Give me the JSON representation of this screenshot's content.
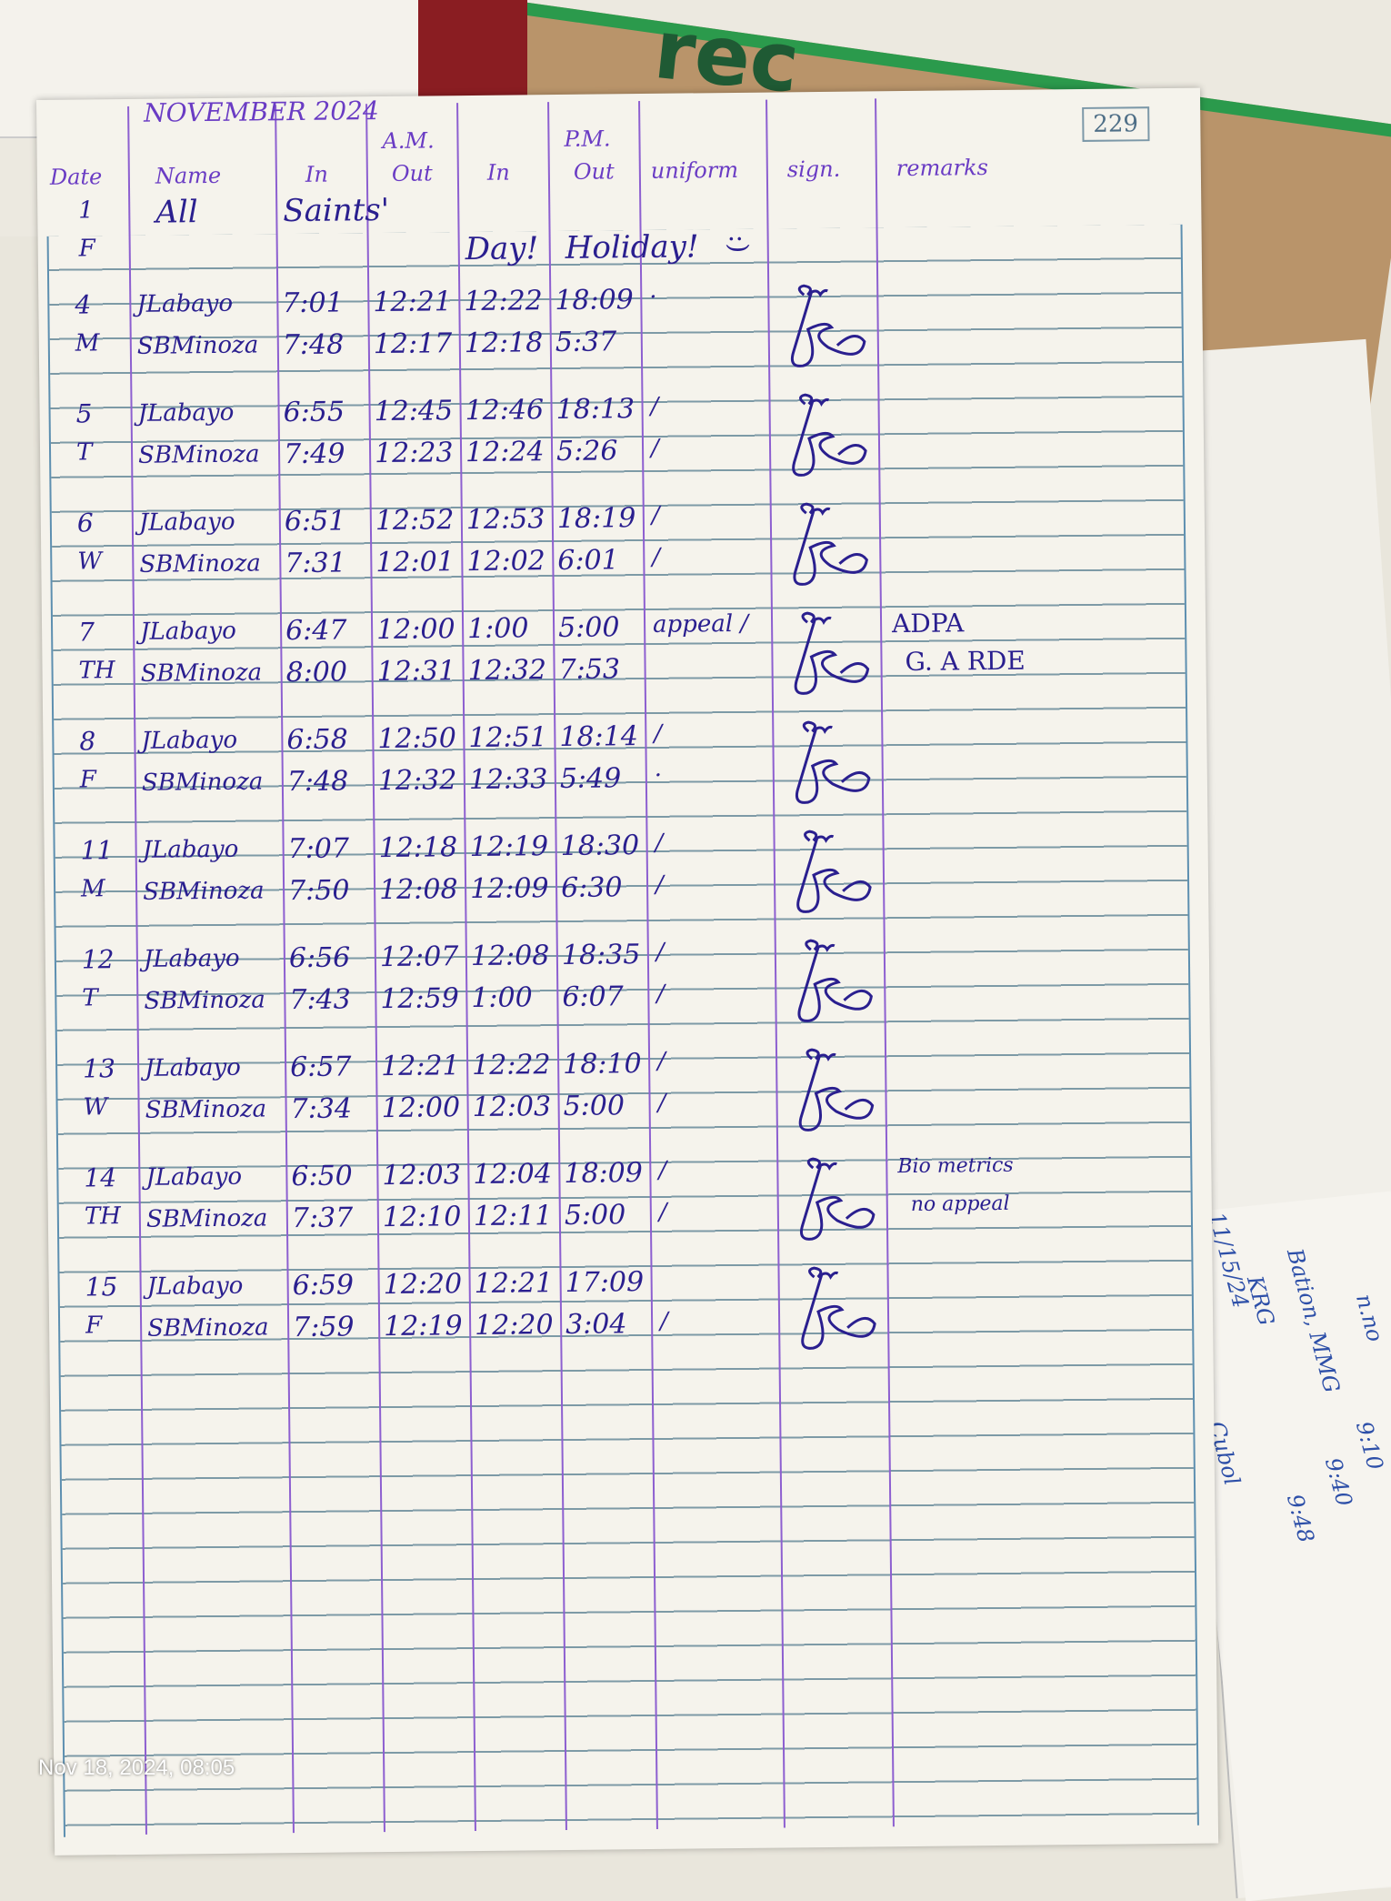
{
  "page_number": "229",
  "header": {
    "month": "NOVEMBER 2024",
    "am": "A.M.",
    "pm": "P.M.",
    "columns": {
      "date": "Date",
      "name": "Name",
      "am_in": "In",
      "am_out": "Out",
      "pm_in": "In",
      "pm_out": "Out",
      "uniform": "uniform",
      "sign": "sign.",
      "remarks": "remarks"
    }
  },
  "holiday": {
    "date": "1",
    "day": "F",
    "text_parts": [
      "All",
      "Saints'",
      "Day!",
      "Holiday!"
    ],
    "smiley": ":)"
  },
  "entries": [
    {
      "date": "4",
      "day": "M",
      "rows": [
        {
          "name": "JLabayo",
          "am_in": "7:01",
          "am_out": "12:21",
          "pm_in": "12:22",
          "pm_out": "18:09",
          "uniform": "·"
        },
        {
          "name": "SBMinoza",
          "am_in": "7:48",
          "am_out": "12:17",
          "pm_in": "12:18",
          "pm_out": "5:37",
          "uniform": ""
        }
      ],
      "remarks": []
    },
    {
      "date": "5",
      "day": "T",
      "rows": [
        {
          "name": "JLabayo",
          "am_in": "6:55",
          "am_out": "12:45",
          "pm_in": "12:46",
          "pm_out": "18:13",
          "uniform": "/"
        },
        {
          "name": "SBMinoza",
          "am_in": "7:49",
          "am_out": "12:23",
          "pm_in": "12:24",
          "pm_out": "5:26",
          "uniform": "/"
        }
      ],
      "remarks": []
    },
    {
      "date": "6",
      "day": "W",
      "rows": [
        {
          "name": "JLabayo",
          "am_in": "6:51",
          "am_out": "12:52",
          "pm_in": "12:53",
          "pm_out": "18:19",
          "uniform": "/"
        },
        {
          "name": "SBMinoza",
          "am_in": "7:31",
          "am_out": "12:01",
          "pm_in": "12:02",
          "pm_out": "6:01",
          "uniform": "/"
        }
      ],
      "remarks": []
    },
    {
      "date": "7",
      "day": "TH",
      "rows": [
        {
          "name": "JLabayo",
          "am_in": "6:47",
          "am_out": "12:00",
          "pm_in": "1:00",
          "pm_out": "5:00",
          "uniform": "appeal /"
        },
        {
          "name": "SBMinoza",
          "am_in": "8:00",
          "am_out": "12:31",
          "pm_in": "12:32",
          "pm_out": "7:53",
          "uniform": ""
        }
      ],
      "remarks": [
        "ADPA",
        "G. A RDE"
      ]
    },
    {
      "date": "8",
      "day": "F",
      "rows": [
        {
          "name": "JLabayo",
          "am_in": "6:58",
          "am_out": "12:50",
          "pm_in": "12:51",
          "pm_out": "18:14",
          "uniform": "/"
        },
        {
          "name": "SBMinoza",
          "am_in": "7:48",
          "am_out": "12:32",
          "pm_in": "12:33",
          "pm_out": "5:49",
          "uniform": "·"
        }
      ],
      "remarks": []
    },
    {
      "date": "11",
      "day": "M",
      "rows": [
        {
          "name": "JLabayo",
          "am_in": "7:07",
          "am_out": "12:18",
          "pm_in": "12:19",
          "pm_out": "18:30",
          "uniform": "/"
        },
        {
          "name": "SBMinoza",
          "am_in": "7:50",
          "am_out": "12:08",
          "pm_in": "12:09",
          "pm_out": "6:30",
          "uniform": "/"
        }
      ],
      "remarks": []
    },
    {
      "date": "12",
      "day": "T",
      "rows": [
        {
          "name": "JLabayo",
          "am_in": "6:56",
          "am_out": "12:07",
          "pm_in": "12:08",
          "pm_out": "18:35",
          "uniform": "/"
        },
        {
          "name": "SBMinoza",
          "am_in": "7:43",
          "am_out": "12:59",
          "pm_in": "1:00",
          "pm_out": "6:07",
          "uniform": "/"
        }
      ],
      "remarks": []
    },
    {
      "date": "13",
      "day": "W",
      "rows": [
        {
          "name": "JLabayo",
          "am_in": "6:57",
          "am_out": "12:21",
          "pm_in": "12:22",
          "pm_out": "18:10",
          "uniform": "/"
        },
        {
          "name": "SBMinoza",
          "am_in": "7:34",
          "am_out": "12:00",
          "pm_in": "12:03",
          "pm_out": "5:00",
          "uniform": "/"
        }
      ],
      "remarks": []
    },
    {
      "date": "14",
      "day": "TH",
      "rows": [
        {
          "name": "JLabayo",
          "am_in": "6:50",
          "am_out": "12:03",
          "pm_in": "12:04",
          "pm_out": "18:09",
          "uniform": "/"
        },
        {
          "name": "SBMinoza",
          "am_in": "7:37",
          "am_out": "12:10",
          "pm_in": "12:11",
          "pm_out": "5:00",
          "uniform": "/"
        }
      ],
      "remarks": [
        "Bio metrics",
        "no appeal"
      ]
    },
    {
      "date": "15",
      "day": "F",
      "rows": [
        {
          "name": "JLabayo",
          "am_in": "6:59",
          "am_out": "12:20",
          "pm_in": "12:21",
          "pm_out": "17:09",
          "uniform": ""
        },
        {
          "name": "SBMinoza",
          "am_in": "7:59",
          "am_out": "12:19",
          "pm_in": "12:20",
          "pm_out": "3:04",
          "uniform": "/"
        }
      ],
      "remarks": []
    }
  ],
  "background": {
    "cardboard_text": "rec",
    "side_notes": [
      "11/15/24",
      "Cubol",
      "KRG",
      "Bation, MMG",
      "9:48",
      "9:40",
      "9:10",
      "n.no"
    ]
  },
  "timestamp": "Nov 18, 2024, 08:05",
  "colors": {
    "ink": "#2a1f8f",
    "column_lines": "#8d5fd0",
    "ruled_lines": "#7d9aa6",
    "paper": "#f5f3ec"
  }
}
